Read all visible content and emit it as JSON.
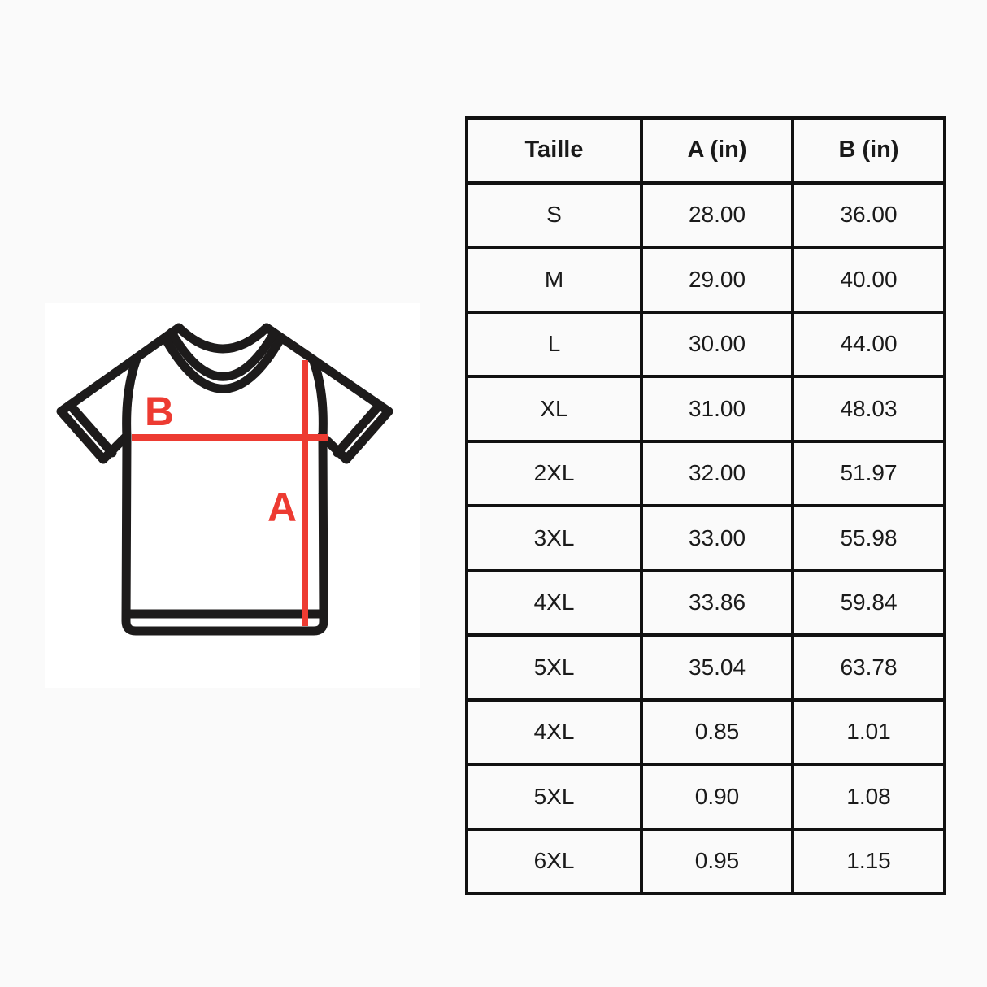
{
  "page": {
    "background": "#fafafa"
  },
  "diagram": {
    "label_a": "A",
    "label_b": "B",
    "accent_color": "#ed3b32",
    "outline_color": "#1d1b1b",
    "card_background": "#ffffff"
  },
  "table": {
    "border_color": "#111111",
    "text_color": "#1a1a1a",
    "cell_background": "#fafafa",
    "headers": [
      "Taille",
      "A (in)",
      "B (in)"
    ],
    "rows": [
      [
        "S",
        "28.00",
        "36.00"
      ],
      [
        "M",
        "29.00",
        "40.00"
      ],
      [
        "L",
        "30.00",
        "44.00"
      ],
      [
        "XL",
        "31.00",
        "48.03"
      ],
      [
        "2XL",
        "32.00",
        "51.97"
      ],
      [
        "3XL",
        "33.00",
        "55.98"
      ],
      [
        "4XL",
        "33.86",
        "59.84"
      ],
      [
        "5XL",
        "35.04",
        "63.78"
      ],
      [
        "4XL",
        "0.85",
        "1.01"
      ],
      [
        "5XL",
        "0.90",
        "1.08"
      ],
      [
        "6XL",
        "0.95",
        "1.15"
      ]
    ]
  }
}
